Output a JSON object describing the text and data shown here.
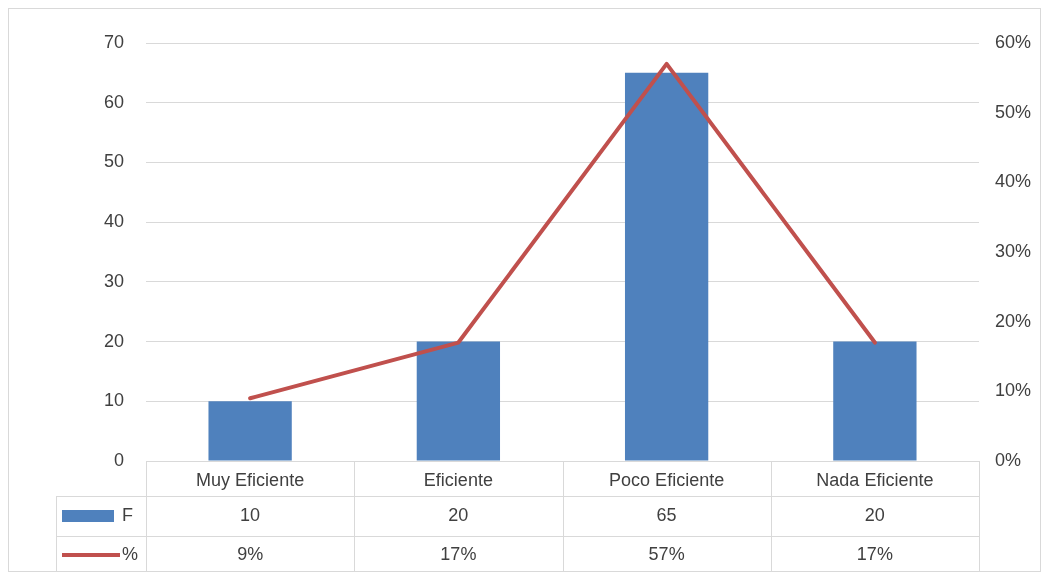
{
  "chart_data": {
    "type": "bar",
    "categories": [
      "Muy Eficiente",
      "Eficiente",
      "Poco Eficiente",
      "Nada Eficiente"
    ],
    "series": [
      {
        "name": "F",
        "color": "#4f81bd",
        "values": [
          10,
          20,
          65,
          20
        ],
        "value_labels": [
          "10",
          "20",
          "65",
          "20"
        ]
      },
      {
        "name": "%",
        "type": "line",
        "axis": "y2",
        "color": "#c0504d",
        "values": [
          9,
          17,
          57,
          17
        ],
        "value_labels": [
          "9%",
          "17%",
          "57%",
          "17%"
        ]
      }
    ],
    "ylim": [
      0,
      70
    ],
    "yticks": [
      0,
      10,
      20,
      30,
      40,
      50,
      60,
      70
    ],
    "y2lim": [
      0,
      60
    ],
    "y2ticks": [
      {
        "value": 0,
        "label": "0%"
      },
      {
        "value": 10,
        "label": "10%"
      },
      {
        "value": 20,
        "label": "20%"
      },
      {
        "value": 30,
        "label": "30%"
      },
      {
        "value": 40,
        "label": "40%"
      },
      {
        "value": 50,
        "label": "50%"
      },
      {
        "value": 60,
        "label": "60%"
      }
    ],
    "grid": "y",
    "legend": "bottom",
    "marker": "none",
    "line_style": "solid"
  }
}
